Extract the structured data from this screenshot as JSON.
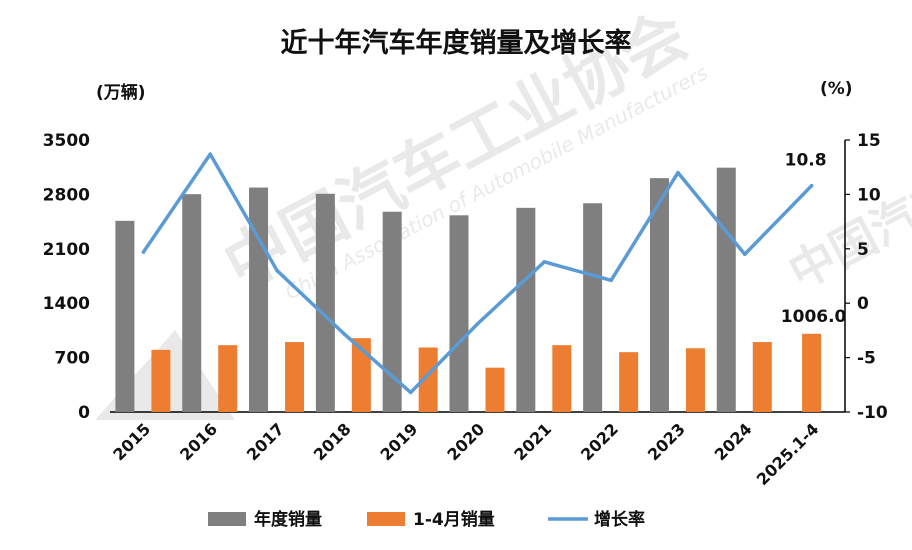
{
  "chart_data": {
    "type": "bar",
    "title": "近十年汽车年度销量及增长率",
    "left_unit": "(万辆)",
    "right_unit": "(%)",
    "categories": [
      "2015",
      "2016",
      "2017",
      "2018",
      "2019",
      "2020",
      "2021",
      "2022",
      "2023",
      "2024",
      "2025.1-4"
    ],
    "series": [
      {
        "name": "年度销量",
        "kind": "bar",
        "color": "#7f7f7f",
        "values": [
          2460,
          2803,
          2888,
          2808,
          2577,
          2531,
          2627,
          2686,
          3009,
          3144,
          null
        ]
      },
      {
        "name": "1-4月销量",
        "kind": "bar",
        "color": "#ed7d31",
        "values": [
          800,
          860,
          900,
          950,
          830,
          570,
          860,
          770,
          820,
          900,
          1006.0
        ]
      },
      {
        "name": "增长率",
        "kind": "line",
        "axis": "right",
        "color": "#5b9bd5",
        "values": [
          4.7,
          13.7,
          3.0,
          -2.8,
          -8.2,
          -1.9,
          3.8,
          2.1,
          12.0,
          4.5,
          10.8
        ]
      }
    ],
    "left_axis": {
      "min": 0,
      "max": 3500,
      "ticks": [
        "0",
        "700",
        "1400",
        "2100",
        "2800",
        "3500"
      ]
    },
    "right_axis": {
      "min": -10,
      "max": 15,
      "ticks": [
        "-10",
        "-5",
        "0",
        "5",
        "10",
        "15"
      ]
    },
    "data_labels": [
      {
        "series": "1-4月销量",
        "index": 10,
        "text": "1006.0"
      },
      {
        "series": "增长率",
        "index": 10,
        "text": "10.8"
      }
    ],
    "legend_position": "bottom",
    "grid": false
  },
  "watermark": {
    "text_cn": "中国汽车工业协会",
    "text_en": "China Association of Automobile Manufacturers"
  }
}
